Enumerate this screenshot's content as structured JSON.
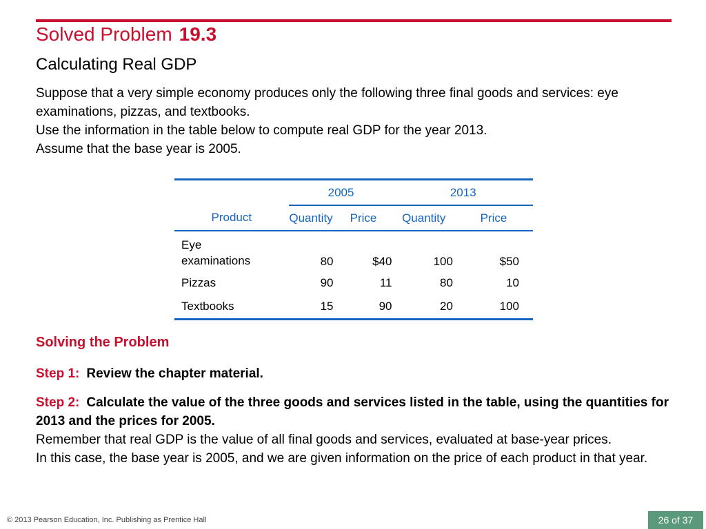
{
  "slide": {
    "title_prefix": "Solved Problem",
    "title_number": "19.3",
    "subtitle": "Calculating Real GDP",
    "intro": [
      "Suppose that a very simple economy produces only the following three final goods and services: eye examinations, pizzas, and textbooks.",
      "Use the information in the table below to compute real GDP for the year 2013.",
      "Assume that the base year is 2005."
    ]
  },
  "table": {
    "years": [
      "2005",
      "2013"
    ],
    "headers": [
      "Product",
      "Quantity",
      "Price",
      "Quantity",
      "Price"
    ],
    "rows": [
      {
        "product_line1": "Eye",
        "product_line2": "examinations",
        "q2005": "80",
        "p2005": "$40",
        "q2013": "100",
        "p2013": "$50"
      },
      {
        "product": "Pizzas",
        "q2005": "90",
        "p2005": "11",
        "q2013": "80",
        "p2013": "10"
      },
      {
        "product": "Textbooks",
        "q2005": "15",
        "p2005": "90",
        "q2013": "20",
        "p2013": "100"
      }
    ]
  },
  "solution": {
    "heading": "Solving the Problem",
    "step1_label": "Step 1:",
    "step1_text": "Review the chapter material.",
    "step2_label": "Step 2:",
    "step2_text": "Calculate the value of the three goods and services listed in the table, using the quantities for 2013 and the prices for 2005.",
    "paragraphs": [
      "Remember that real GDP is the value of all final goods and services, evaluated at base-year prices.",
      "In this case, the base year is 2005, and we are given information on the price of each product in that year."
    ]
  },
  "footer": {
    "copyright": "© 2013 Pearson Education, Inc. Publishing as Prentice Hall",
    "page": "26 of 37"
  },
  "colors": {
    "accent_red": "#c8102e",
    "table_blue": "#1565c0",
    "badge_green": "#5a9a7a"
  }
}
